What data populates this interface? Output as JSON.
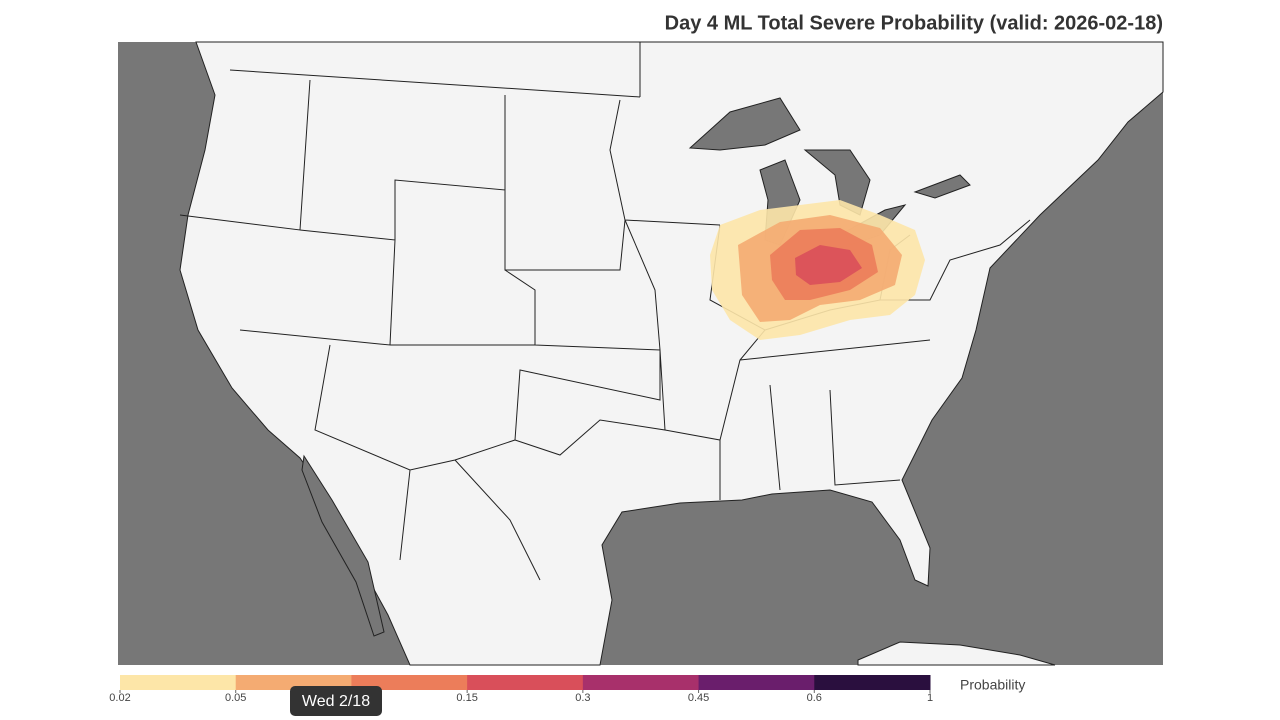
{
  "title": "Day 4 ML Total Severe Probability (valid: 2026-02-18)",
  "colorbar": {
    "label": "Probability",
    "ticks": [
      0.02,
      0.05,
      null,
      0.15,
      0.3,
      0.45,
      0.6,
      1
    ],
    "colors": [
      "#fde6a8",
      "#f4ab72",
      "#ec7d5a",
      "#d94f5a",
      "#a8306b",
      "#6a1e6c",
      "#2a0f3e"
    ]
  },
  "tooltip": "Wed 2/18"
}
